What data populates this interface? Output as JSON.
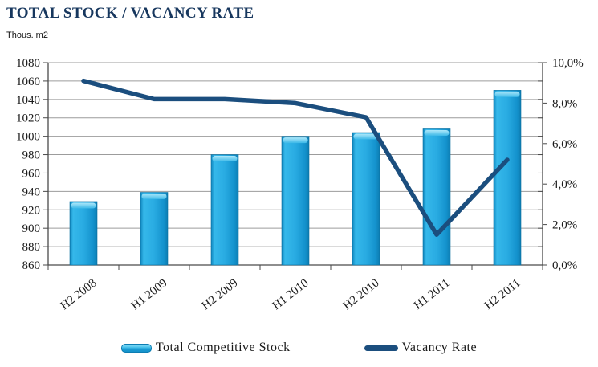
{
  "header": {
    "title": "TOTAL STOCK / VACANCY RATE",
    "units_label": "Thous. m2"
  },
  "chart_data": {
    "type": "bar",
    "subtype": "bar-line-combo",
    "title": "TOTAL STOCK / VACANCY RATE",
    "categories": [
      "H2 2008",
      "H1 2009",
      "H2 2009",
      "H1 2010",
      "H2 2010",
      "H1 2011",
      "H2 2011"
    ],
    "series": [
      {
        "name": "Total Competitive Stock",
        "type": "bar",
        "axis": "left",
        "values": [
          929,
          939,
          980,
          1000,
          1004,
          1008,
          1050
        ]
      },
      {
        "name": "Vacancy Rate",
        "type": "line",
        "axis": "right",
        "values": [
          9.1,
          8.2,
          8.2,
          8.0,
          7.3,
          1.5,
          5.2
        ]
      }
    ],
    "left_axis": {
      "label": "Thous. m2",
      "min": 860,
      "max": 1080,
      "step": 20,
      "tick_labels": [
        "1080",
        "1060",
        "1040",
        "1020",
        "1000",
        "980",
        "960",
        "940",
        "920",
        "900",
        "880",
        "860"
      ]
    },
    "right_axis": {
      "min": 0,
      "max": 10,
      "step": 2,
      "tick_labels": [
        "10,0%",
        "8,0%",
        "6,0%",
        "4,0%",
        "2,0%",
        "0,0%"
      ]
    },
    "grid": true,
    "legend_position": "bottom"
  },
  "legend": {
    "items": [
      {
        "label": "Total Competitive Stock",
        "swatch": "bar"
      },
      {
        "label": "Vacancy Rate",
        "swatch": "line"
      }
    ]
  },
  "colors": {
    "title": "#17375e",
    "bar_main": "#29abe2",
    "bar_edge": "#0d7db2",
    "bar_highlight": "#8fdef7",
    "line": "#1b4e7e",
    "gridline": "#9c9c9c",
    "axis_line": "#4a4a4a",
    "axis_text": "#1a1a1a"
  }
}
